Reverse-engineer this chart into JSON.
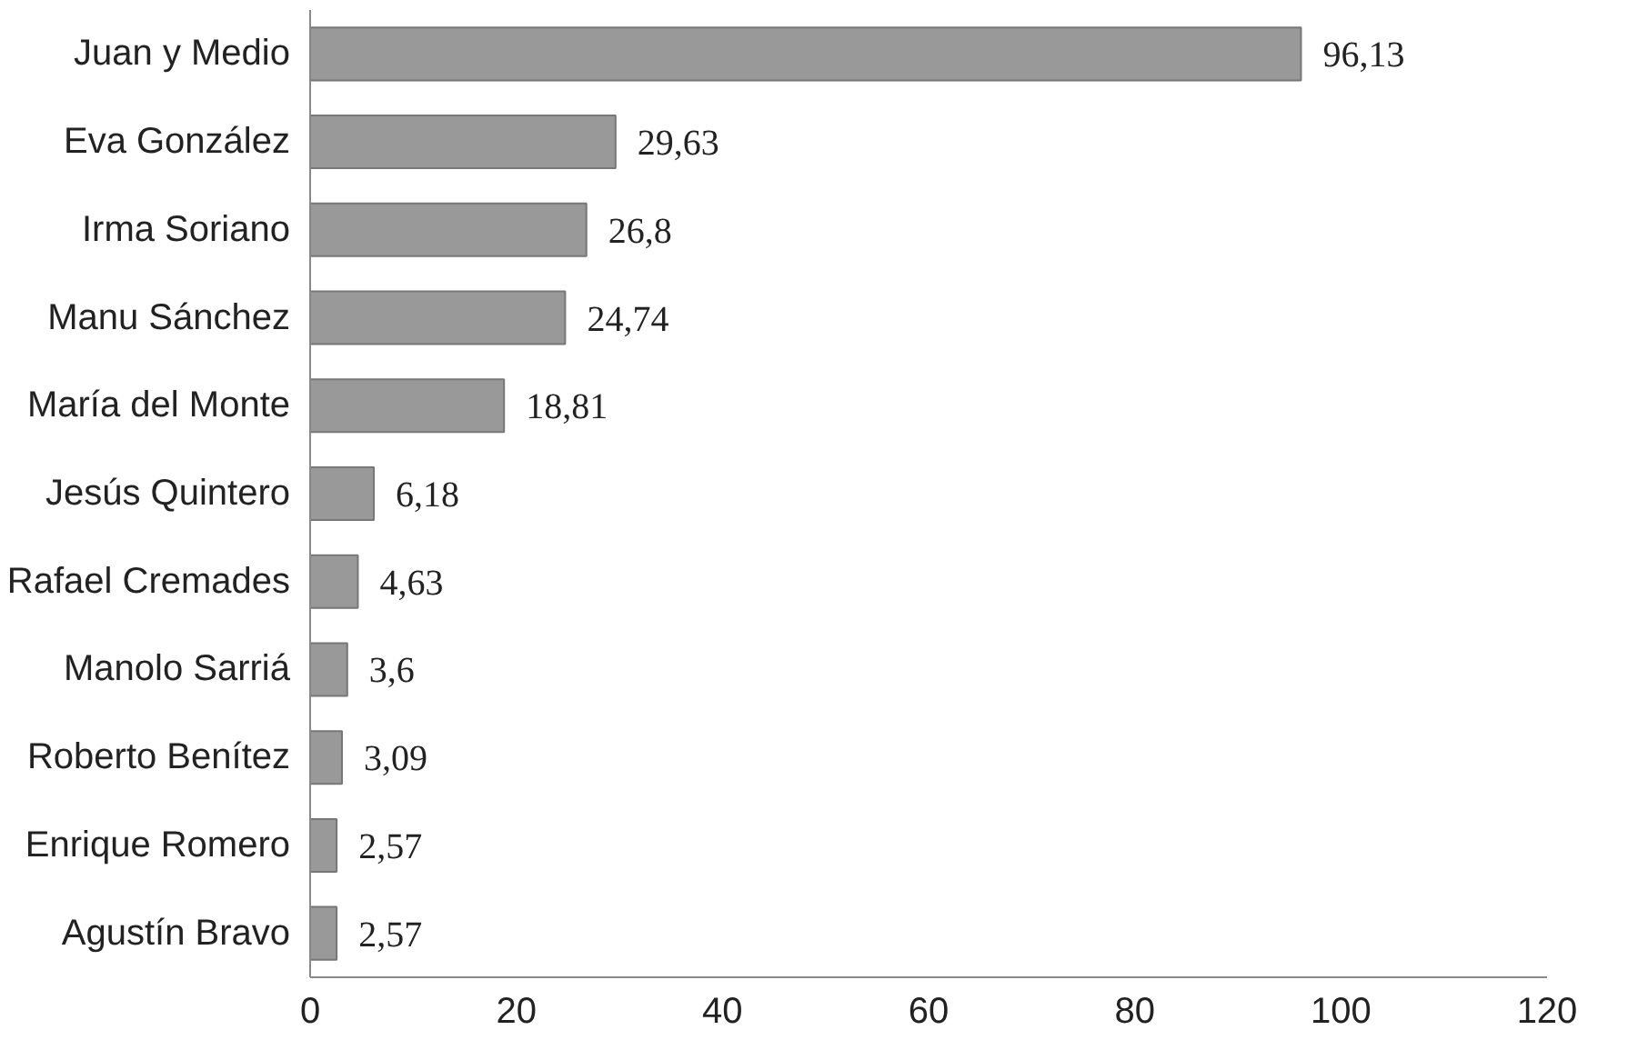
{
  "chart_data": {
    "type": "bar",
    "orientation": "horizontal",
    "categories": [
      "Juan y Medio",
      "Eva González",
      "Irma Soriano",
      "Manu Sánchez",
      "María del Monte",
      "Jesús Quintero",
      "Rafael Cremades",
      "Manolo Sarriá",
      "Roberto Benítez",
      "Enrique Romero",
      "Agustín Bravo"
    ],
    "values": [
      96.13,
      29.63,
      26.8,
      24.74,
      18.81,
      6.18,
      4.63,
      3.6,
      3.09,
      2.57,
      2.57
    ],
    "value_labels": [
      "96,13",
      "29,63",
      "26,8",
      "24,74",
      "18,81",
      "6,18",
      "4,63",
      "3,6",
      "3,09",
      "2,57",
      "2,57"
    ],
    "color": "#999999",
    "xlim": [
      0,
      120
    ],
    "xticks": [
      0,
      20,
      40,
      60,
      80,
      100,
      120
    ],
    "grid": false
  }
}
